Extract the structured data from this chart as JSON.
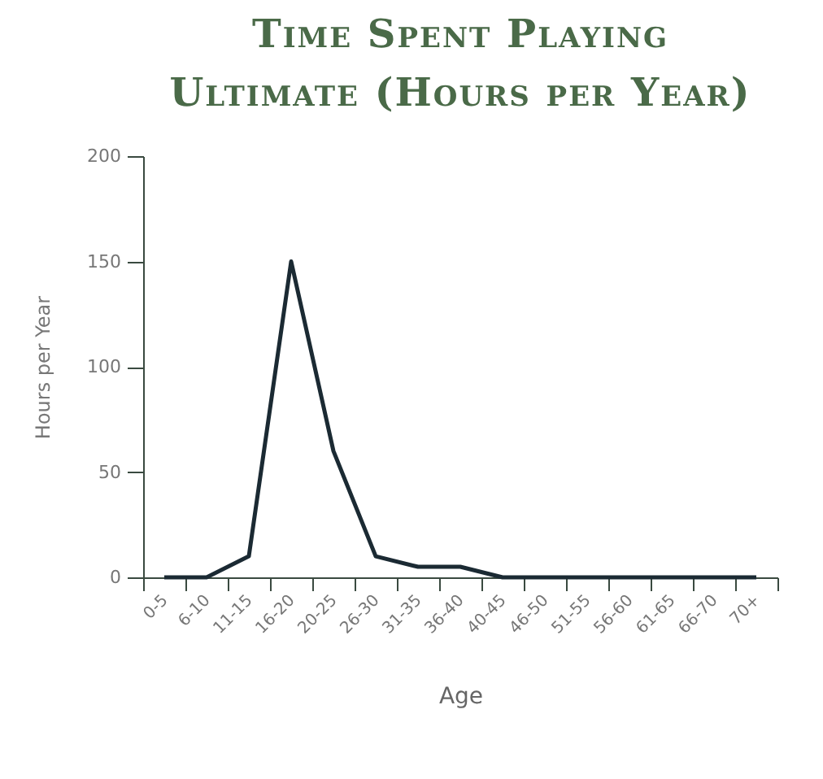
{
  "chart_data": {
    "type": "line",
    "title": "Time Spent Playing Ultimate (Hours per Year)",
    "xlabel": "Age",
    "ylabel": "Hours per Year",
    "categories": [
      "0-5",
      "6-10",
      "11-15",
      "16-20",
      "20-25",
      "26-30",
      "31-35",
      "36-40",
      "40-45",
      "46-50",
      "51-55",
      "56-60",
      "61-65",
      "66-70",
      "70+"
    ],
    "series": [
      {
        "color": "#1b2a33",
        "values": [
          0,
          0,
          10,
          150,
          60,
          10,
          5,
          5,
          0,
          0,
          0,
          0,
          0,
          0,
          0
        ]
      }
    ],
    "ylim": [
      0,
      200
    ],
    "yticks": [
      0,
      50,
      100,
      150,
      200
    ],
    "grid": false,
    "marker": "none",
    "line_style": "solid"
  }
}
